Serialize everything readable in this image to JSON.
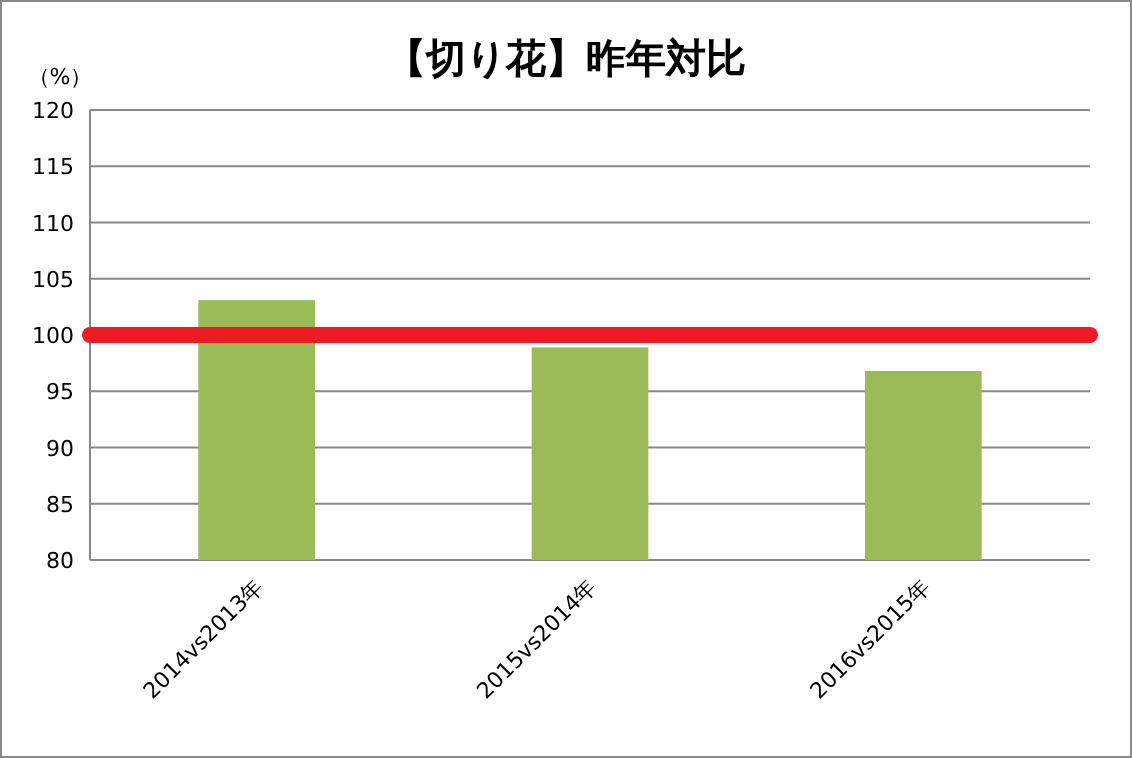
{
  "chart_data": {
    "type": "bar",
    "title": "【切り花】昨年対比",
    "ylabel": "（%）",
    "categories": [
      "2014vs2013年",
      "2015vs2014年",
      "2016vs2015年"
    ],
    "values": [
      103.1,
      98.9,
      96.8
    ],
    "color": "#9bbb59",
    "ylim": [
      80,
      120
    ],
    "yticks": [
      80,
      85,
      90,
      95,
      100,
      105,
      110,
      115,
      120
    ],
    "grid": "y",
    "ref_lines": [
      {
        "axis": "y",
        "value": 100,
        "color": "#ed1c24"
      }
    ]
  }
}
